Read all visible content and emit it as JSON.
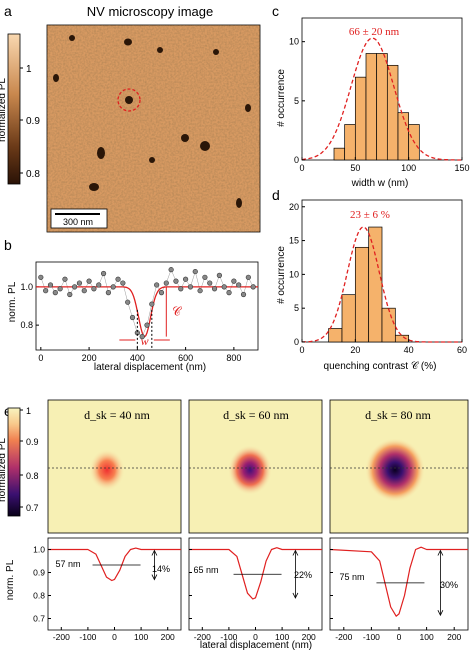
{
  "panels": {
    "a": {
      "letter": "a",
      "title": "NV microscopy image",
      "colorbar_label": "normalized  PL",
      "colorbar_ticks": [
        "1",
        "0.9",
        "0.8"
      ],
      "scalebar_label": "300 nm"
    },
    "b": {
      "letter": "b",
      "ylabel": "norm. PL",
      "xlabel": "lateral displacement (nm)",
      "contrast_symbol": "𝒞",
      "width_symbol": "w"
    },
    "c": {
      "letter": "c",
      "annotation": "66 ± 20 nm",
      "ylabel": "# occurrence",
      "xlabel": "width w (nm)"
    },
    "d": {
      "letter": "d",
      "annotation": "23 ± 6 %",
      "ylabel": "# occurrence",
      "xlabel": "quenching contrast 𝒞 (%)"
    },
    "e": {
      "letter": "e",
      "colorbar_label": "normalized  PL",
      "colorbar_ticks": [
        "1",
        "0.9",
        "0.8",
        "0.7"
      ],
      "ylabel": "norm. PL",
      "xlabel": "lateral displacement (nm)",
      "sims": [
        {
          "title": "d_sk = 40 nm",
          "width_label": "57 nm",
          "contrast_label": "14%",
          "min": 0.86,
          "sigma": 24,
          "depth_scale": 0.55
        },
        {
          "title": "d_sk = 60 nm",
          "width_label": "65 nm",
          "contrast_label": "22%",
          "min": 0.78,
          "sigma": 27,
          "depth_scale": 0.8
        },
        {
          "title": "d_sk = 80 nm",
          "width_label": "75 nm",
          "contrast_label": "30%",
          "min": 0.71,
          "sigma": 31,
          "depth_scale": 1.0
        }
      ]
    }
  },
  "colors": {
    "histogram": "#f5b26b",
    "fit": "#e02020",
    "map_bg": "#f7f0b4"
  },
  "chart_data": [
    {
      "type": "scatter",
      "panel": "b",
      "ylabel": "norm. PL",
      "xlabel": "lateral displacement (nm)",
      "xlim": [
        -20,
        900
      ],
      "ylim": [
        0.67,
        1.13
      ],
      "xticks": [
        0,
        200,
        400,
        600,
        800
      ],
      "yticks": [
        0.8,
        1.0
      ],
      "x": [
        0,
        20,
        40,
        60,
        80,
        100,
        120,
        140,
        160,
        180,
        200,
        220,
        240,
        260,
        280,
        300,
        320,
        340,
        360,
        380,
        400,
        420,
        440,
        460,
        480,
        500,
        520,
        540,
        560,
        580,
        600,
        620,
        640,
        660,
        680,
        700,
        720,
        740,
        760,
        780,
        800,
        820,
        840,
        860,
        880
      ],
      "y": [
        1.05,
        0.98,
        1.01,
        0.97,
        0.99,
        1.04,
        0.96,
        1.0,
        1.02,
        0.98,
        1.03,
        0.99,
        1.01,
        1.07,
        0.97,
        1.0,
        1.04,
        1.02,
        0.92,
        0.84,
        0.76,
        0.74,
        0.8,
        0.91,
        1.01,
        0.97,
        1.02,
        1.09,
        1.03,
        0.99,
        1.04,
        1.0,
        1.08,
        0.98,
        1.05,
        1.02,
        0.99,
        1.06,
        1.0,
        0.97,
        1.03,
        1.01,
        0.96,
        1.05,
        1.0
      ],
      "fit": {
        "baseline": 1.0,
        "center": 430,
        "min": 0.74,
        "sigma": 25
      }
    },
    {
      "type": "bar",
      "panel": "c",
      "xlabel": "width w (nm)",
      "ylabel": "# occurrence",
      "xlim": [
        0,
        150
      ],
      "ylim": [
        0,
        12
      ],
      "xticks": [
        0,
        50,
        100,
        150
      ],
      "yticks": [
        0,
        5,
        10
      ],
      "bin_edges": [
        30,
        40,
        50,
        60,
        70,
        80,
        90,
        100,
        110
      ],
      "values": [
        1,
        3,
        7,
        9,
        9,
        8,
        4,
        3
      ],
      "fit": {
        "mean": 66,
        "std": 20,
        "amplitude": 10.3
      }
    },
    {
      "type": "bar",
      "panel": "d",
      "xlabel": "quenching contrast 𝒞 (%)",
      "ylabel": "# occurrence",
      "xlim": [
        0,
        60
      ],
      "ylim": [
        0,
        21
      ],
      "xticks": [
        0,
        20,
        40,
        60
      ],
      "yticks": [
        0,
        5,
        10,
        15,
        20
      ],
      "bin_edges": [
        10,
        15,
        20,
        25,
        30,
        35,
        40
      ],
      "values": [
        2,
        7,
        14,
        17,
        5,
        1
      ],
      "fit": {
        "mean": 23,
        "std": 6,
        "amplitude": 17
      }
    },
    {
      "type": "line",
      "panel": "e",
      "xlabel": "lateral displacement (nm)",
      "ylabel": "norm. PL",
      "xlim": [
        -250,
        250
      ],
      "ylim": [
        0.65,
        1.05
      ],
      "xticks": [
        -200,
        -100,
        0,
        100,
        200
      ],
      "yticks": [
        0.7,
        0.8,
        0.9,
        1.0
      ],
      "series": [
        {
          "x": [
            -250,
            -100,
            -70,
            -50,
            -30,
            -10,
            0,
            20,
            40,
            60,
            80,
            100,
            250
          ],
          "y": [
            1.0,
            1.0,
            0.98,
            0.93,
            0.88,
            0.865,
            0.87,
            0.91,
            0.97,
            1.0,
            1.006,
            1.0,
            1.0
          ]
        },
        {
          "x": [
            -250,
            -100,
            -70,
            -50,
            -30,
            -10,
            0,
            20,
            40,
            60,
            80,
            100,
            250
          ],
          "y": [
            1.0,
            1.0,
            0.97,
            0.89,
            0.81,
            0.785,
            0.79,
            0.86,
            0.95,
            1.0,
            1.008,
            1.0,
            1.0
          ]
        },
        {
          "x": [
            -250,
            -100,
            -70,
            -50,
            -30,
            -10,
            0,
            20,
            40,
            60,
            80,
            100,
            250
          ],
          "y": [
            1.0,
            0.99,
            0.95,
            0.85,
            0.75,
            0.71,
            0.72,
            0.8,
            0.92,
            1.0,
            1.01,
            1.0,
            1.0
          ]
        }
      ]
    }
  ]
}
